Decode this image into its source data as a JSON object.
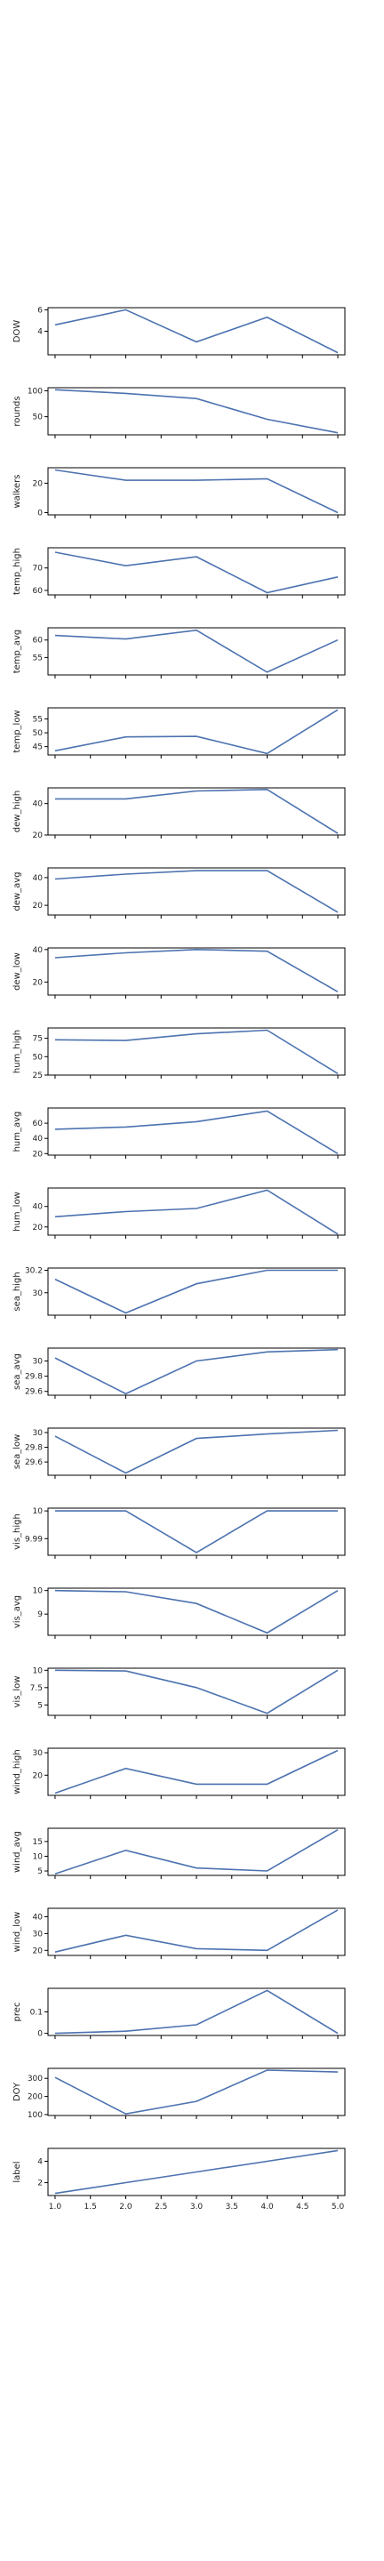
{
  "chart_data": {
    "type": "line",
    "x": [
      1,
      2,
      3,
      4,
      5
    ],
    "xlim": [
      0.9,
      5.1
    ],
    "x_ticks": [
      1.0,
      1.5,
      2.0,
      2.5,
      3.0,
      3.5,
      4.0,
      4.5,
      5.0
    ],
    "x_tick_labels": [
      "1.0",
      "1.5",
      "2.0",
      "2.5",
      "3.0",
      "3.5",
      "4.0",
      "4.5",
      "5.0"
    ],
    "x_tick_labels_shown_on": "bottom panel only",
    "series_color": "#4c72b0",
    "panels": [
      {
        "ylabel": "DOW",
        "values": [
          4.6,
          6.0,
          3.0,
          5.3,
          2.0
        ],
        "ylim": [
          1.8,
          6.2
        ],
        "y_ticks": [
          4,
          6
        ]
      },
      {
        "ylabel": "rounds",
        "values": [
          102,
          95,
          85,
          45,
          19
        ],
        "ylim": [
          15,
          106
        ],
        "y_ticks": [
          50,
          100
        ]
      },
      {
        "ylabel": "walkers",
        "values": [
          29,
          22,
          22,
          23,
          0
        ],
        "ylim": [
          -1.5,
          30.5
        ],
        "y_ticks": [
          0,
          20
        ]
      },
      {
        "ylabel": "temp_high",
        "values": [
          77,
          71,
          75,
          59,
          66
        ],
        "ylim": [
          58,
          79
        ],
        "y_ticks": [
          60,
          70
        ]
      },
      {
        "ylabel": "temp_avg",
        "values": [
          61.3,
          60.3,
          62.8,
          50.8,
          60.0
        ],
        "ylim": [
          50,
          63.5
        ],
        "y_ticks": [
          55,
          60
        ]
      },
      {
        "ylabel": "temp_low",
        "values": [
          43.5,
          48.5,
          48.7,
          42.5,
          58.3
        ],
        "ylim": [
          42,
          59
        ],
        "y_ticks": [
          45,
          50,
          55
        ]
      },
      {
        "ylabel": "dew_high",
        "values": [
          43,
          43,
          48,
          49,
          21
        ],
        "ylim": [
          20,
          50
        ],
        "y_ticks": [
          20,
          40
        ]
      },
      {
        "ylabel": "dew_avg",
        "values": [
          39,
          42.5,
          45,
          45,
          15
        ],
        "ylim": [
          13,
          47
        ],
        "y_ticks": [
          20,
          40
        ]
      },
      {
        "ylabel": "dew_low",
        "values": [
          35,
          38,
          40,
          39,
          14
        ],
        "ylim": [
          12,
          41
        ],
        "y_ticks": [
          20,
          40
        ]
      },
      {
        "ylabel": "hum_high",
        "values": [
          73,
          72,
          81,
          86,
          27
        ],
        "ylim": [
          25,
          89
        ],
        "y_ticks": [
          25,
          50,
          75
        ]
      },
      {
        "ylabel": "hum_avg",
        "values": [
          52,
          55,
          62,
          76,
          20
        ],
        "ylim": [
          18,
          80
        ],
        "y_ticks": [
          20,
          40,
          60
        ]
      },
      {
        "ylabel": "hum_low",
        "values": [
          30,
          35,
          38,
          56,
          13
        ],
        "ylim": [
          12,
          58
        ],
        "y_ticks": [
          20,
          40
        ]
      },
      {
        "ylabel": "sea_high",
        "values": [
          30.12,
          29.82,
          30.08,
          30.2,
          30.2
        ],
        "ylim": [
          29.8,
          30.22
        ],
        "y_ticks": [
          30.0,
          30.2
        ]
      },
      {
        "ylabel": "sea_avg",
        "values": [
          30.04,
          29.57,
          30.0,
          30.12,
          30.15
        ],
        "ylim": [
          29.55,
          30.17
        ],
        "y_ticks": [
          29.6,
          29.8,
          30.0
        ]
      },
      {
        "ylabel": "sea_low",
        "values": [
          29.95,
          29.45,
          29.92,
          29.98,
          30.03
        ],
        "ylim": [
          29.42,
          30.06
        ],
        "y_ticks": [
          29.6,
          29.8,
          30.0
        ]
      },
      {
        "ylabel": "vis_high",
        "values": [
          10.0,
          10.0,
          9.985,
          10.0,
          10.0
        ],
        "ylim": [
          9.984,
          10.001
        ],
        "y_ticks": [
          9.99,
          10.0
        ]
      },
      {
        "ylabel": "vis_avg",
        "values": [
          10.0,
          9.95,
          9.45,
          8.2,
          10.0
        ],
        "ylim": [
          8.1,
          10.1
        ],
        "y_ticks": [
          9,
          10
        ]
      },
      {
        "ylabel": "vis_low",
        "values": [
          10.0,
          9.9,
          7.5,
          3.8,
          10.0
        ],
        "ylim": [
          3.5,
          10.3
        ],
        "y_ticks": [
          5.0,
          7.5,
          10.0
        ]
      },
      {
        "ylabel": "wind_high",
        "values": [
          12,
          23,
          16,
          16,
          31
        ],
        "ylim": [
          11,
          32
        ],
        "y_ticks": [
          20,
          30
        ]
      },
      {
        "ylabel": "wind_avg",
        "values": [
          4,
          12,
          6,
          5,
          19
        ],
        "ylim": [
          3.5,
          19.5
        ],
        "y_ticks": [
          5,
          10,
          15
        ]
      },
      {
        "ylabel": "wind_low",
        "values": [
          19,
          29,
          21,
          20,
          44
        ],
        "ylim": [
          17,
          45
        ],
        "y_ticks": [
          20,
          30,
          40
        ]
      },
      {
        "ylabel": "prec",
        "values": [
          0.0,
          0.01,
          0.04,
          0.2,
          0.0
        ],
        "ylim": [
          -0.01,
          0.21
        ],
        "y_ticks": [
          0.0,
          0.1
        ]
      },
      {
        "ylabel": "DOY",
        "values": [
          305,
          104,
          173,
          345,
          335
        ],
        "ylim": [
          95,
          355
        ],
        "y_ticks": [
          100,
          200,
          300
        ]
      },
      {
        "ylabel": "label",
        "values": [
          1,
          2,
          3,
          4,
          5
        ],
        "ylim": [
          0.8,
          5.2
        ],
        "y_ticks": [
          2,
          4
        ]
      }
    ]
  }
}
